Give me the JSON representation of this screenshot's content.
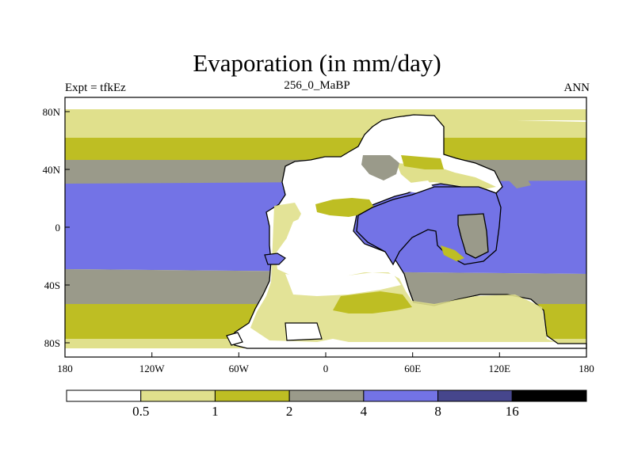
{
  "title": "Evaporation (in mm/day)",
  "left_label": "Expt = tfkEz",
  "center_label": "256_0_MaBP",
  "right_label": "ANN",
  "axes": {
    "lat_ticks": [
      "80N",
      "40N",
      "0",
      "40S",
      "80S"
    ],
    "lon_ticks": [
      "180",
      "120W",
      "60W",
      "0",
      "60E",
      "120E",
      "180"
    ]
  },
  "colorbar": {
    "levels": [
      "0.5",
      "1",
      "2",
      "4",
      "8",
      "16"
    ],
    "colors": [
      "#ffffff",
      "#e0e08c",
      "#bebe23",
      "#9a9a8a",
      "#7373e6",
      "#46468c",
      "#000000"
    ]
  }
}
